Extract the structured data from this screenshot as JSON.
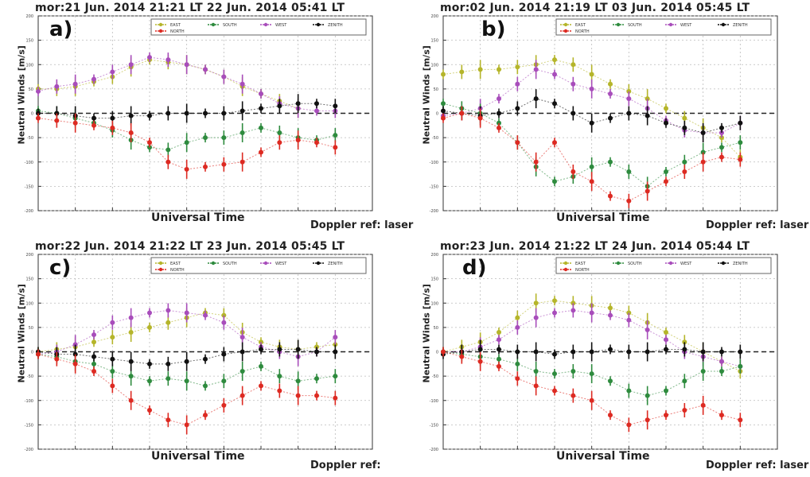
{
  "colors": {
    "east": "#b5b52a",
    "south": "#2e8b3e",
    "west": "#a84dbb",
    "north": "#111111",
    "north_red": "#dd2a22"
  },
  "panels": [
    {
      "id": "a",
      "title": "mor:21 Jun. 2014 21:21 LT   22 Jun. 2014 05:41 LT",
      "label": "a)",
      "footer": "Doppler ref: laser"
    },
    {
      "id": "b",
      "title": "mor:02 Jun. 2014 21:19 LT   03 Jun. 2014 05:45 LT",
      "label": "b)",
      "footer": "Doppler ref: laser"
    },
    {
      "id": "c",
      "title": "mor:22 Jun. 2014 21:22 LT   23 Jun. 2014 05:45 LT",
      "label": "c)",
      "footer": "Doppler ref:"
    },
    {
      "id": "d",
      "title": "mor:23 Jun. 2014 21:22 LT   24 Jun. 2014 05:44 LT",
      "label": "d)",
      "footer": "Doppler ref: laser"
    }
  ],
  "xlabel": "Universal Time",
  "ylabel": "Neutral Winds [m/s]",
  "legend": {
    "labels": [
      "EAST",
      "SOUTH",
      "WEST",
      "ZENITH",
      "NORTH"
    ]
  },
  "chart_data": [
    {
      "type": "scatter",
      "ylim": [
        -200,
        200
      ],
      "xlim": [
        0,
        9
      ],
      "yticks": [
        200,
        150,
        100,
        50,
        0,
        -50,
        -100,
        -150,
        -200
      ],
      "series": [
        {
          "name": "EAST",
          "color": "east",
          "x": [
            0,
            0.5,
            1,
            1.5,
            2,
            2.5,
            3,
            3.5,
            4,
            4.5,
            5,
            5.5,
            6,
            6.5,
            7
          ],
          "y": [
            50,
            50,
            55,
            65,
            75,
            95,
            110,
            105,
            100,
            90,
            75,
            55,
            40,
            25,
            10
          ]
        },
        {
          "name": "WEST",
          "color": "west",
          "x": [
            0,
            0.5,
            1,
            1.5,
            2,
            2.5,
            3,
            3.5,
            4,
            4.5,
            5,
            5.5,
            6,
            6.5,
            7,
            7.5,
            8
          ],
          "y": [
            45,
            55,
            60,
            70,
            85,
            100,
            115,
            110,
            100,
            90,
            75,
            60,
            40,
            20,
            10,
            5,
            5
          ]
        },
        {
          "name": "SOUTH",
          "color": "south",
          "x": [
            0,
            0.5,
            1,
            1.5,
            2,
            2.5,
            3,
            3.5,
            4,
            4.5,
            5,
            5.5,
            6,
            6.5,
            7,
            7.5,
            8
          ],
          "y": [
            5,
            0,
            -10,
            -20,
            -35,
            -55,
            -70,
            -75,
            -60,
            -50,
            -50,
            -40,
            -30,
            -40,
            -50,
            -55,
            -45
          ]
        },
        {
          "name": "ZENITH",
          "color": "north",
          "x": [
            0,
            0.5,
            1,
            1.5,
            2,
            2.5,
            3,
            3.5,
            4,
            4.5,
            5,
            5.5,
            6,
            6.5,
            7,
            7.5,
            8
          ],
          "y": [
            0,
            0,
            -5,
            -10,
            -10,
            -5,
            -5,
            0,
            0,
            0,
            0,
            5,
            10,
            15,
            20,
            20,
            15
          ]
        },
        {
          "name": "NORTH",
          "color": "north_red",
          "x": [
            0,
            0.5,
            1,
            1.5,
            2,
            2.5,
            3,
            3.5,
            4,
            4.5,
            5,
            5.5,
            6,
            6.5,
            7,
            7.5,
            8
          ],
          "y": [
            -10,
            -15,
            -20,
            -25,
            -30,
            -40,
            -60,
            -100,
            -115,
            -110,
            -105,
            -100,
            -80,
            -60,
            -55,
            -60,
            -70
          ]
        }
      ]
    },
    {
      "type": "scatter",
      "ylim": [
        -200,
        200
      ],
      "xlim": [
        0,
        9
      ],
      "yticks": [
        200,
        150,
        100,
        50,
        0,
        -50,
        -100,
        -150,
        -200
      ],
      "series": [
        {
          "name": "EAST",
          "color": "east",
          "x": [
            0,
            0.5,
            1,
            1.5,
            2,
            2.5,
            3,
            3.5,
            4,
            4.5,
            5,
            5.5,
            6,
            6.5,
            7,
            7.5,
            8
          ],
          "y": [
            80,
            85,
            90,
            90,
            95,
            100,
            110,
            100,
            80,
            60,
            45,
            30,
            10,
            -10,
            -30,
            -50,
            -90
          ]
        },
        {
          "name": "WEST",
          "color": "west",
          "x": [
            0,
            0.5,
            1,
            1.5,
            2,
            2.5,
            3,
            3.5,
            4,
            4.5,
            5,
            5.5,
            6,
            6.5,
            7,
            7.5,
            8
          ],
          "y": [
            -5,
            0,
            10,
            30,
            60,
            90,
            80,
            60,
            50,
            40,
            30,
            10,
            -15,
            -35,
            -40,
            -40,
            -20
          ]
        },
        {
          "name": "SOUTH",
          "color": "south",
          "x": [
            0,
            0.5,
            1,
            1.5,
            2,
            2.5,
            3,
            3.5,
            4,
            4.5,
            5,
            5.5,
            6,
            6.5,
            7,
            7.5,
            8
          ],
          "y": [
            20,
            10,
            0,
            -20,
            -60,
            -110,
            -140,
            -130,
            -110,
            -100,
            -120,
            -150,
            -120,
            -100,
            -80,
            -70,
            -60
          ]
        },
        {
          "name": "ZENITH",
          "color": "north",
          "x": [
            0,
            0.5,
            1,
            1.5,
            2,
            2.5,
            3,
            3.5,
            4,
            4.5,
            5,
            5.5,
            6,
            6.5,
            7,
            7.5,
            8
          ],
          "y": [
            5,
            0,
            -5,
            0,
            10,
            30,
            20,
            0,
            -20,
            -10,
            0,
            -5,
            -20,
            -30,
            -40,
            -30,
            -20
          ]
        },
        {
          "name": "NORTH",
          "color": "north_red",
          "x": [
            0,
            0.5,
            1,
            1.5,
            2,
            2.5,
            3,
            3.5,
            4,
            4.5,
            5,
            5.5,
            6,
            6.5,
            7,
            7.5,
            8
          ],
          "y": [
            -10,
            0,
            -10,
            -30,
            -60,
            -100,
            -60,
            -120,
            -140,
            -170,
            -180,
            -160,
            -140,
            -120,
            -100,
            -90,
            -95
          ]
        }
      ]
    },
    {
      "type": "scatter",
      "ylim": [
        -200,
        200
      ],
      "xlim": [
        0,
        9
      ],
      "yticks": [
        200,
        150,
        100,
        50,
        0,
        -50,
        -100,
        -150,
        -200
      ],
      "series": [
        {
          "name": "EAST",
          "color": "east",
          "x": [
            0,
            0.5,
            1,
            1.5,
            2,
            2.5,
            3,
            3.5,
            4,
            4.5,
            5,
            5.5,
            6,
            6.5,
            7,
            7.5,
            8
          ],
          "y": [
            0,
            5,
            10,
            20,
            30,
            40,
            50,
            60,
            70,
            80,
            75,
            40,
            20,
            10,
            5,
            10,
            15
          ]
        },
        {
          "name": "WEST",
          "color": "west",
          "x": [
            0,
            0.5,
            1,
            1.5,
            2,
            2.5,
            3,
            3.5,
            4,
            4.5,
            5,
            5.5,
            6,
            6.5,
            7,
            7.5,
            8
          ],
          "y": [
            -5,
            0,
            15,
            35,
            60,
            70,
            80,
            85,
            80,
            75,
            60,
            30,
            10,
            0,
            -10,
            0,
            30
          ]
        },
        {
          "name": "SOUTH",
          "color": "south",
          "x": [
            0,
            0.5,
            1,
            1.5,
            2,
            2.5,
            3,
            3.5,
            4,
            4.5,
            5,
            5.5,
            6,
            6.5,
            7,
            7.5,
            8
          ],
          "y": [
            -5,
            -10,
            -20,
            -25,
            -40,
            -50,
            -60,
            -55,
            -60,
            -70,
            -60,
            -40,
            -30,
            -50,
            -60,
            -55,
            -50
          ]
        },
        {
          "name": "ZENITH",
          "color": "north",
          "x": [
            0,
            0.5,
            1,
            1.5,
            2,
            2.5,
            3,
            3.5,
            4,
            4.5,
            5,
            5.5,
            6,
            6.5,
            7,
            7.5,
            8
          ],
          "y": [
            0,
            -5,
            -5,
            -10,
            -15,
            -20,
            -25,
            -25,
            -20,
            -15,
            -5,
            0,
            5,
            5,
            5,
            0,
            0
          ]
        },
        {
          "name": "NORTH",
          "color": "north_red",
          "x": [
            0,
            0.5,
            1,
            1.5,
            2,
            2.5,
            3,
            3.5,
            4,
            4.5,
            5,
            5.5,
            6,
            6.5,
            7,
            7.5,
            8
          ],
          "y": [
            -5,
            -15,
            -25,
            -40,
            -70,
            -100,
            -120,
            -140,
            -150,
            -130,
            -110,
            -90,
            -70,
            -80,
            -90,
            -90,
            -95
          ]
        }
      ]
    },
    {
      "type": "scatter",
      "ylim": [
        -200,
        200
      ],
      "xlim": [
        0,
        9
      ],
      "yticks": [
        200,
        150,
        100,
        50,
        0,
        -50,
        -100,
        -150,
        -200
      ],
      "series": [
        {
          "name": "EAST",
          "color": "east",
          "x": [
            0,
            0.5,
            1,
            1.5,
            2,
            2.5,
            3,
            3.5,
            4,
            4.5,
            5,
            5.5,
            6,
            6.5,
            7,
            7.5,
            8
          ],
          "y": [
            0,
            10,
            20,
            40,
            70,
            100,
            105,
            100,
            95,
            90,
            80,
            60,
            40,
            20,
            0,
            -20,
            -40
          ]
        },
        {
          "name": "WEST",
          "color": "west",
          "x": [
            0,
            0.5,
            1,
            1.5,
            2,
            2.5,
            3,
            3.5,
            4,
            4.5,
            5,
            5.5,
            6,
            6.5,
            7,
            7.5,
            8
          ],
          "y": [
            0,
            0,
            10,
            25,
            50,
            70,
            80,
            85,
            80,
            75,
            65,
            45,
            25,
            0,
            -10,
            -20,
            -30
          ]
        },
        {
          "name": "SOUTH",
          "color": "south",
          "x": [
            0,
            0.5,
            1,
            1.5,
            2,
            2.5,
            3,
            3.5,
            4,
            4.5,
            5,
            5.5,
            6,
            6.5,
            7,
            7.5,
            8
          ],
          "y": [
            0,
            -5,
            -10,
            -15,
            -25,
            -40,
            -45,
            -40,
            -45,
            -60,
            -80,
            -90,
            -80,
            -60,
            -40,
            -40,
            -30
          ]
        },
        {
          "name": "ZENITH",
          "color": "north",
          "x": [
            0,
            0.5,
            1,
            1.5,
            2,
            2.5,
            3,
            3.5,
            4,
            4.5,
            5,
            5.5,
            6,
            6.5,
            7,
            7.5,
            8
          ],
          "y": [
            -5,
            0,
            5,
            5,
            0,
            0,
            -5,
            0,
            0,
            5,
            0,
            0,
            5,
            5,
            0,
            0,
            0
          ]
        },
        {
          "name": "NORTH",
          "color": "north_red",
          "x": [
            0,
            0.5,
            1,
            1.5,
            2,
            2.5,
            3,
            3.5,
            4,
            4.5,
            5,
            5.5,
            6,
            6.5,
            7,
            7.5,
            8
          ],
          "y": [
            0,
            -10,
            -20,
            -30,
            -55,
            -70,
            -80,
            -90,
            -100,
            -130,
            -150,
            -140,
            -130,
            -120,
            -110,
            -130,
            -140
          ]
        }
      ]
    }
  ]
}
